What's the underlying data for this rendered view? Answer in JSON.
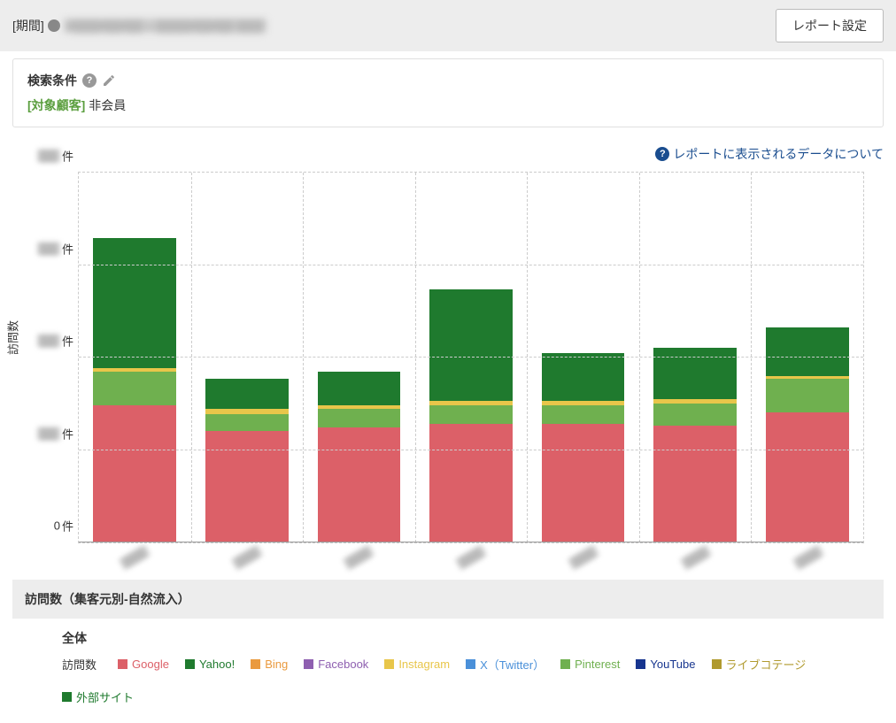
{
  "header": {
    "period_label": "[期間]",
    "period_value": "2▒▒▒/▒▒/▒▒ – ▒▒▒▒/▒▒/▒▒  ▒▒▒",
    "report_settings": "レポート設定"
  },
  "search": {
    "title": "検索条件",
    "filter_key": "[対象顧客]",
    "filter_value": "非会員"
  },
  "info_link": "レポートに表示されるデータについて",
  "chart": {
    "type": "stacked-bar",
    "y_axis_title": "訪問数",
    "y_unit": "件",
    "background_color": "#ffffff",
    "grid_color": "#cccccc",
    "axis_color": "#999999",
    "bar_width_pct": 74,
    "y_ticks": [
      {
        "pct": 0,
        "label": "0",
        "blurred": false
      },
      {
        "pct": 25,
        "label": "▒▒",
        "blurred": true
      },
      {
        "pct": 50,
        "label": "▒▒",
        "blurred": true
      },
      {
        "pct": 75,
        "label": "▒▒",
        "blurred": true
      },
      {
        "pct": 100,
        "label": "▒▒",
        "blurred": true
      }
    ],
    "series": [
      {
        "key": "google",
        "label": "Google",
        "color": "#dc6068"
      },
      {
        "key": "yahoo",
        "label": "Yahoo!",
        "color": "#1f7a2e"
      },
      {
        "key": "bing",
        "label": "Bing",
        "color": "#ea9a3e"
      },
      {
        "key": "facebook",
        "label": "Facebook",
        "color": "#8e5fb0"
      },
      {
        "key": "instagram",
        "label": "Instagram",
        "color": "#e8c64a"
      },
      {
        "key": "x",
        "label": "X（Twitter）",
        "color": "#4a90d9"
      },
      {
        "key": "pinterest",
        "label": "Pinterest",
        "color": "#6fb04f"
      },
      {
        "key": "youtube",
        "label": "YouTube",
        "color": "#17358f"
      },
      {
        "key": "livecommerce",
        "label": "ライブコテージ",
        "color": "#b09a2e"
      },
      {
        "key": "external",
        "label": "外部サイト",
        "color": "#1f7a2e"
      }
    ],
    "categories": [
      "▒▒▒",
      "▒▒▒",
      "▒▒▒",
      "▒▒▒",
      "▒▒▒",
      "▒▒▒",
      "▒▒▒"
    ],
    "stacks": [
      {
        "google": 37,
        "pinterest": 9,
        "instagram": 1,
        "external": 35
      },
      {
        "google": 30,
        "pinterest": 4.5,
        "instagram": 1.5,
        "external": 8
      },
      {
        "google": 31,
        "pinterest": 5,
        "instagram": 1,
        "external": 9
      },
      {
        "google": 32,
        "pinterest": 5,
        "instagram": 1,
        "external": 30
      },
      {
        "google": 32,
        "pinterest": 5,
        "instagram": 1,
        "external": 13
      },
      {
        "google": 31.5,
        "pinterest": 6,
        "instagram": 1,
        "external": 14
      },
      {
        "google": 35,
        "pinterest": 9,
        "instagram": 0.8,
        "external": 13
      }
    ]
  },
  "table": {
    "section_title": "訪問数（集客元別-自然流入）",
    "sub_title": "全体",
    "legend_label": "訪問数"
  }
}
